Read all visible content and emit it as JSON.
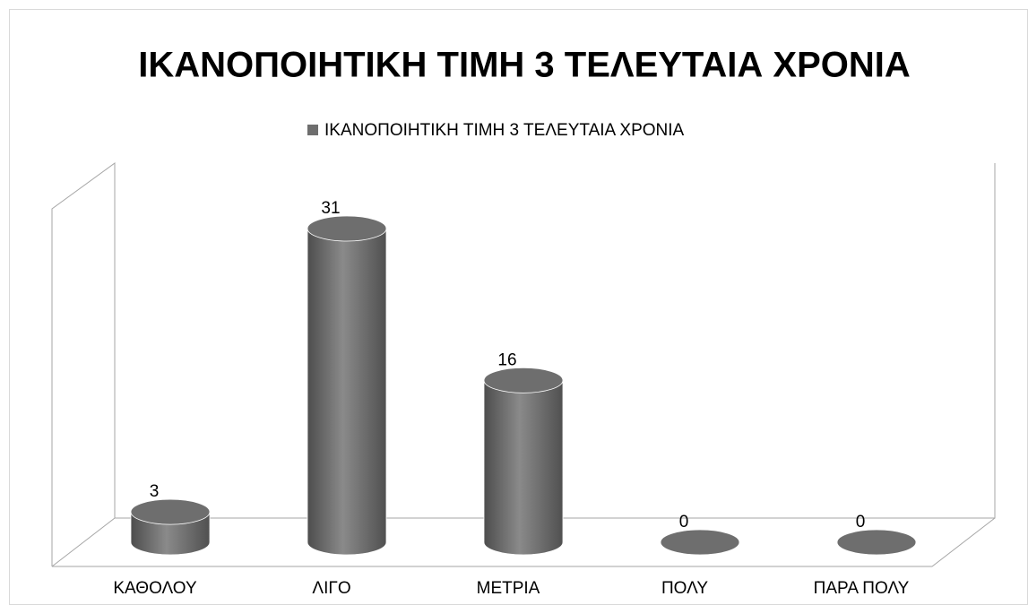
{
  "chart_data": {
    "type": "bar3d-cylinder",
    "title": "ΙΚΑΝΟΠΟΙΗΤΙΚΗ ΤΙΜΗ 3 ΤΕΛΕΥΤΑΙΑ ΧΡΟΝΙΑ",
    "categories": [
      "ΚΑΘΟΛΟΥ",
      "ΛΙΓΟ",
      "ΜΕΤΡΙΑ",
      "ΠΟΛΥ",
      "ΠΑΡΑ ΠΟΛΥ"
    ],
    "series": [
      {
        "name": "ΙΚΑΝΟΠΟΙΗΤΙΚΗ ΤΙΜΗ 3 ΤΕΛΕΥΤΑΙΑ ΧΡΟΝΙΑ",
        "color": "#6e6e6e",
        "values": [
          3,
          31,
          16,
          0,
          0
        ]
      }
    ],
    "legend": "top"
  }
}
